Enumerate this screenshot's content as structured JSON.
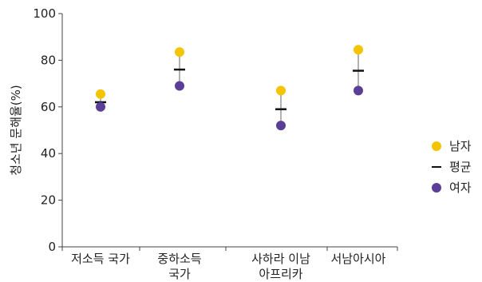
{
  "chart_data": {
    "type": "scatter",
    "ylabel": "청소년 문해율(%)",
    "ylim": [
      0,
      100
    ],
    "yticks": [
      0,
      20,
      40,
      60,
      80,
      100
    ],
    "categories": [
      [
        "저소득 국가"
      ],
      [
        "중하소득",
        "국가"
      ],
      [
        "사하라 이남",
        "아프리카"
      ],
      [
        "서남아시아"
      ]
    ],
    "series": [
      {
        "name": "남자",
        "values": [
          65.5,
          83.5,
          67,
          84.5
        ],
        "color": "#f5c400",
        "marker": "circle"
      },
      {
        "name": "평균",
        "values": [
          62,
          76,
          59,
          75.5
        ],
        "color": "#111111",
        "marker": "dash"
      },
      {
        "name": "여자",
        "values": [
          60,
          69,
          52,
          67
        ],
        "color": "#5b3f96",
        "marker": "circle"
      }
    ],
    "range_line_color": "#999999",
    "legend_position": "right",
    "grid": false
  }
}
